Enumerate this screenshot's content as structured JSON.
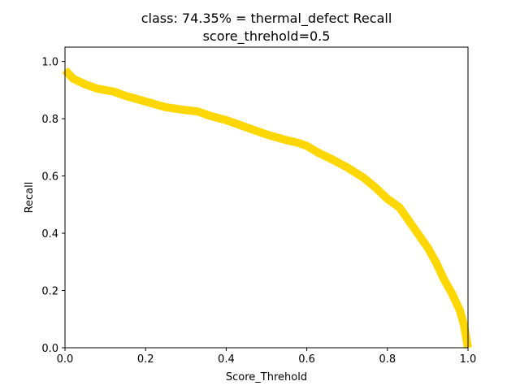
{
  "chart_data": {
    "type": "line",
    "title_line1": "class: 74.35% = thermal_defect Recall",
    "title_line2": "score_threhold=0.5",
    "xlabel": "Score_Threhold",
    "ylabel": "Recall",
    "xlim": [
      0.0,
      1.0
    ],
    "ylim": [
      0.0,
      1.05
    ],
    "xticks": [
      "0.0",
      "0.2",
      "0.4",
      "0.6",
      "0.8",
      "1.0"
    ],
    "yticks": [
      "0.0",
      "0.2",
      "0.4",
      "0.6",
      "0.8",
      "1.0"
    ],
    "grid": false,
    "series": [
      {
        "color": "#FFD700",
        "x": [
          0.0,
          0.02,
          0.05,
          0.08,
          0.12,
          0.15,
          0.2,
          0.25,
          0.3,
          0.33,
          0.36,
          0.4,
          0.45,
          0.5,
          0.55,
          0.58,
          0.6,
          0.63,
          0.66,
          0.7,
          0.74,
          0.77,
          0.8,
          0.83,
          0.86,
          0.88,
          0.9,
          0.92,
          0.94,
          0.96,
          0.98,
          0.99,
          1.0
        ],
        "y": [
          0.97,
          0.94,
          0.92,
          0.905,
          0.895,
          0.88,
          0.86,
          0.84,
          0.83,
          0.825,
          0.81,
          0.795,
          0.77,
          0.745,
          0.725,
          0.715,
          0.705,
          0.68,
          0.66,
          0.63,
          0.595,
          0.56,
          0.52,
          0.49,
          0.43,
          0.39,
          0.35,
          0.3,
          0.24,
          0.19,
          0.13,
          0.08,
          0.0
        ]
      }
    ]
  }
}
